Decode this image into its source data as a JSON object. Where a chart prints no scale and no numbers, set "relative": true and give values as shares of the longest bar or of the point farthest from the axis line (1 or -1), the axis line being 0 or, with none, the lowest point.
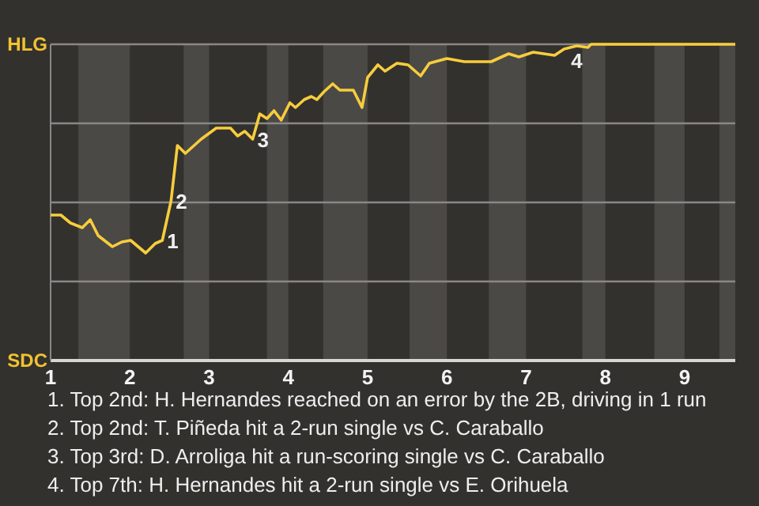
{
  "chart_data": {
    "type": "line",
    "relative": true,
    "x": [
      1,
      1.13,
      1.25,
      1.4,
      1.5,
      1.6,
      1.78,
      1.9,
      2.01,
      2.2,
      2.32,
      2.41,
      2.52,
      2.6,
      2.7,
      2.9,
      3.09,
      3.27,
      3.36,
      3.45,
      3.55,
      3.64,
      3.73,
      3.82,
      3.91,
      4.02,
      4.09,
      4.2,
      4.29,
      4.36,
      4.45,
      4.56,
      4.65,
      4.82,
      4.93,
      5,
      5.13,
      5.22,
      5.37,
      5.51,
      5.67,
      5.78,
      6,
      6.22,
      6.56,
      6.78,
      6.91,
      7.09,
      7.36,
      7.48,
      7.64,
      7.78,
      7.82,
      9.64
    ],
    "series": [
      {
        "color": "#f7cd3c",
        "values": [
          0.46,
          0.46,
          0.435,
          0.42,
          0.445,
          0.395,
          0.36,
          0.375,
          0.38,
          0.34,
          0.37,
          0.38,
          0.505,
          0.68,
          0.655,
          0.7,
          0.735,
          0.735,
          0.71,
          0.725,
          0.7,
          0.78,
          0.765,
          0.79,
          0.76,
          0.815,
          0.8,
          0.825,
          0.835,
          0.825,
          0.85,
          0.875,
          0.855,
          0.855,
          0.8,
          0.895,
          0.935,
          0.915,
          0.94,
          0.935,
          0.9,
          0.94,
          0.955,
          0.945,
          0.945,
          0.97,
          0.96,
          0.975,
          0.965,
          0.985,
          0.995,
          0.99,
          1,
          1
        ]
      }
    ],
    "xlim": [
      1,
      9.64
    ],
    "xticks": [
      1,
      2,
      3,
      4,
      5,
      6,
      7,
      8,
      9
    ],
    "marker": "none",
    "line_style": "solid",
    "ref_lines": [
      {
        "axis": "y",
        "value": 0.25,
        "color": "#8a8886"
      },
      {
        "axis": "y",
        "value": 0.5,
        "color": "#8a8886"
      },
      {
        "axis": "y",
        "value": 0.75,
        "color": "#8a8886"
      },
      {
        "axis": "y",
        "value": 1,
        "color": "#8a8886"
      }
    ],
    "bands": [
      {
        "axis": "x",
        "from": 1.35,
        "to": 2,
        "color": "#4b4946"
      },
      {
        "axis": "x",
        "from": 2.68,
        "to": 3,
        "color": "#4b4946"
      },
      {
        "axis": "x",
        "from": 3.73,
        "to": 4,
        "color": "#4b4946"
      },
      {
        "axis": "x",
        "from": 4.44,
        "to": 5,
        "color": "#4b4946"
      },
      {
        "axis": "x",
        "from": 5.53,
        "to": 6,
        "color": "#4b4946"
      },
      {
        "axis": "x",
        "from": 6.53,
        "to": 7,
        "color": "#4b4946"
      },
      {
        "axis": "x",
        "from": 7.71,
        "to": 8,
        "color": "#4b4946"
      },
      {
        "axis": "x",
        "from": 8.62,
        "to": 9,
        "color": "#4b4946"
      },
      {
        "axis": "x",
        "from": 9.44,
        "to": 9.64,
        "color": "#4b4946"
      }
    ],
    "annotations": [
      "HLG",
      "SDC",
      {
        "text": "1",
        "x": 2.41,
        "y": 0.38
      },
      {
        "text": "2",
        "x": 2.52,
        "y": 0.505
      },
      {
        "text": "3",
        "x": 3.55,
        "y": 0.7
      },
      {
        "text": "4",
        "x": 7.64,
        "y": 0.995
      },
      "1. Top 2nd: H. Hernandes reached on an error by the 2B, driving in 1 run",
      "2. Top 2nd: T. Piñeda hit a 2-run single vs C. Caraballo",
      "3. Top 3rd: D. Arroliga hit a run-scoring single vs C. Caraballo",
      "4. Top 7th: H. Hernandes hit a 2-run single vs E. Orihuela"
    ]
  }
}
